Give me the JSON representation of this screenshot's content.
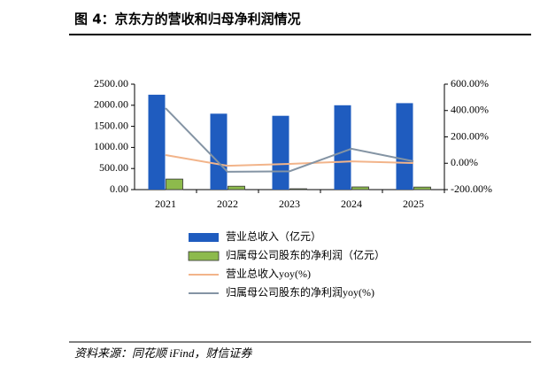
{
  "chart_data": {
    "type": "bar",
    "title": "图 4：京东方的营收和归母净利润情况",
    "source": "资料来源：同花顺 iFind，财信证券",
    "categories": [
      "2021",
      "2022",
      "2023",
      "2024",
      "2025"
    ],
    "series": [
      {
        "name": "营业总收入（亿元）",
        "type": "bar",
        "color": "#1f5cbf",
        "values": [
          2250,
          1800,
          1750,
          2000,
          2050
        ]
      },
      {
        "name": "归属母公司股东的净利润（亿元）",
        "type": "bar",
        "color": "#8dba4c",
        "values": [
          250,
          80,
          20,
          63,
          60
        ]
      },
      {
        "name": "营业总收入yoy(%)",
        "type": "line",
        "axis": "y2",
        "color": "#f2b48a",
        "values": [
          62,
          -19,
          -5,
          14,
          2
        ]
      },
      {
        "name": "归属母公司股东的净利润yoy(%)",
        "type": "line",
        "axis": "y2",
        "color": "#8494a4",
        "values": [
          418,
          -65,
          -61,
          110,
          15
        ]
      }
    ],
    "ylim": [
      0,
      2500
    ],
    "yticks": [
      {
        "value": 0,
        "label": "0.00"
      },
      {
        "value": 500,
        "label": "500.00"
      },
      {
        "value": 1000,
        "label": "1000.00"
      },
      {
        "value": 1500,
        "label": "1500.00"
      },
      {
        "value": 2000,
        "label": "2000.00"
      },
      {
        "value": 2500,
        "label": "2500.00"
      }
    ],
    "y2lim": [
      -200,
      600
    ],
    "y2ticks": [
      {
        "value": -200,
        "label": "-200.00%"
      },
      {
        "value": 0,
        "label": "0.00%"
      },
      {
        "value": 200,
        "label": "200.00%"
      },
      {
        "value": 400,
        "label": "400.00%"
      },
      {
        "value": 600,
        "label": "600.00%"
      }
    ],
    "legend": "bottom"
  }
}
